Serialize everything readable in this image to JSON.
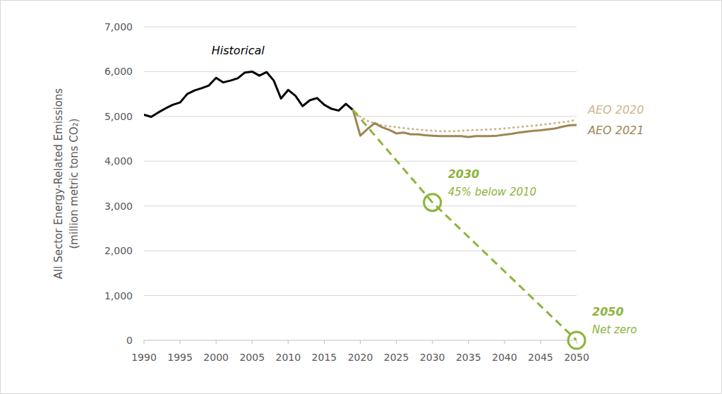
{
  "chart_data": {
    "type": "line",
    "y_label": [
      "All Sector Energy-Related Emissions",
      "(million metric tons CO₂)"
    ],
    "x": [
      1990,
      1991,
      1992,
      1993,
      1994,
      1995,
      1996,
      1997,
      1998,
      1999,
      2000,
      2001,
      2002,
      2003,
      2004,
      2005,
      2006,
      2007,
      2008,
      2009,
      2010,
      2011,
      2012,
      2013,
      2014,
      2015,
      2016,
      2017,
      2018,
      2019,
      2020,
      2021,
      2022,
      2023,
      2024,
      2025,
      2026,
      2027,
      2028,
      2029,
      2030,
      2031,
      2032,
      2033,
      2034,
      2035,
      2036,
      2037,
      2038,
      2039,
      2040,
      2041,
      2042,
      2043,
      2044,
      2045,
      2046,
      2047,
      2048,
      2049,
      2050
    ],
    "series": [
      {
        "name": "Historical",
        "color": "#000000",
        "line_style": "solid",
        "marker": "none",
        "values": [
          5040,
          4990,
          5090,
          5180,
          5260,
          5310,
          5500,
          5580,
          5630,
          5690,
          5860,
          5760,
          5800,
          5850,
          5980,
          6000,
          5910,
          5990,
          5800,
          5400,
          5590,
          5460,
          5230,
          5360,
          5410,
          5260,
          5170,
          5130,
          5280,
          5140,
          null,
          null,
          null,
          null,
          null,
          null,
          null,
          null,
          null,
          null,
          null,
          null,
          null,
          null,
          null,
          null,
          null,
          null,
          null,
          null,
          null,
          null,
          null,
          null,
          null,
          null,
          null,
          null,
          null,
          null,
          null
        ]
      },
      {
        "name": "AEO 2020",
        "color": "#cdb58c",
        "line_style": "dotted",
        "marker": "none",
        "values": [
          null,
          null,
          null,
          null,
          null,
          null,
          null,
          null,
          null,
          null,
          null,
          null,
          null,
          null,
          null,
          null,
          null,
          null,
          null,
          null,
          null,
          null,
          null,
          null,
          null,
          null,
          null,
          null,
          null,
          5140,
          4990,
          4900,
          4850,
          4800,
          4780,
          4760,
          4740,
          4720,
          4710,
          4690,
          4680,
          4670,
          4670,
          4670,
          4680,
          4690,
          4700,
          4700,
          4710,
          4720,
          4730,
          4750,
          4760,
          4780,
          4790,
          4810,
          4830,
          4850,
          4870,
          4890,
          4930
        ]
      },
      {
        "name": "AEO 2021",
        "color": "#9e8552",
        "line_style": "solid",
        "marker": "none",
        "values": [
          null,
          null,
          null,
          null,
          null,
          null,
          null,
          null,
          null,
          null,
          null,
          null,
          null,
          null,
          null,
          null,
          null,
          null,
          null,
          null,
          null,
          null,
          null,
          null,
          null,
          null,
          null,
          null,
          null,
          5140,
          4570,
          4720,
          4850,
          4760,
          4700,
          4620,
          4640,
          4600,
          4600,
          4580,
          4570,
          4560,
          4560,
          4560,
          4560,
          4540,
          4560,
          4560,
          4560,
          4570,
          4590,
          4610,
          4640,
          4660,
          4680,
          4690,
          4710,
          4730,
          4770,
          4800,
          4810
        ]
      },
      {
        "color": "#8cb43c",
        "line_style": "dashed",
        "marker": "none",
        "x": [
          2019,
          2030,
          2050
        ],
        "values": [
          5140,
          3080,
          0
        ]
      }
    ],
    "annotations": [
      {
        "x": 2030,
        "y": 3080,
        "label": "2030",
        "text": "45% below 2010",
        "color": "#8cb43c",
        "marker": "circle"
      },
      {
        "x": 2050,
        "y": 0,
        "label": "2050",
        "text": "Net zero",
        "color": "#8cb43c",
        "marker": "circle"
      }
    ],
    "xlim": [
      1990,
      2050
    ],
    "xticks": [
      1990,
      1995,
      2000,
      2005,
      2010,
      2015,
      2020,
      2025,
      2030,
      2035,
      2040,
      2045,
      2050
    ],
    "ylim": [
      0,
      7000
    ],
    "yticks": [
      0,
      {
        "value": 1000,
        "label": "1,000"
      },
      {
        "value": 2000,
        "label": "2,000"
      },
      {
        "value": 3000,
        "label": "3,000"
      },
      {
        "value": 4000,
        "label": "4,000"
      },
      {
        "value": 5000,
        "label": "5,000"
      },
      {
        "value": 6000,
        "label": "6,000"
      },
      {
        "value": 7000,
        "label": "7,000"
      }
    ],
    "grid": true
  }
}
